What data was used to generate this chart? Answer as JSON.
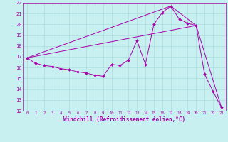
{
  "title": "",
  "xlabel": "Windchill (Refroidissement éolien,°C)",
  "xlim": [
    -0.5,
    23.5
  ],
  "ylim": [
    12,
    22
  ],
  "xticks": [
    0,
    1,
    2,
    3,
    4,
    5,
    6,
    7,
    8,
    9,
    10,
    11,
    12,
    13,
    14,
    15,
    16,
    17,
    18,
    19,
    20,
    21,
    22,
    23
  ],
  "yticks": [
    12,
    13,
    14,
    15,
    16,
    17,
    18,
    19,
    20,
    21,
    22
  ],
  "bg_color": "#c8f0f0",
  "grid_color": "#aadddd",
  "line_color": "#aa00aa",
  "line1_x": [
    0,
    1,
    2,
    3,
    4,
    5,
    6,
    7,
    8,
    9,
    10,
    11,
    12,
    13,
    14,
    15,
    16,
    17,
    18,
    19,
    20,
    21,
    22,
    23
  ],
  "line1_y": [
    16.9,
    16.4,
    16.2,
    16.1,
    15.9,
    15.8,
    15.6,
    15.5,
    15.3,
    15.2,
    16.3,
    16.2,
    16.7,
    18.5,
    16.3,
    20.0,
    21.1,
    21.7,
    20.5,
    20.1,
    19.9,
    15.4,
    13.8,
    12.3
  ],
  "line2_x": [
    0,
    20,
    23
  ],
  "line2_y": [
    16.9,
    19.9,
    12.3
  ],
  "line3_x": [
    0,
    17,
    20
  ],
  "line3_y": [
    16.9,
    21.7,
    19.9
  ]
}
